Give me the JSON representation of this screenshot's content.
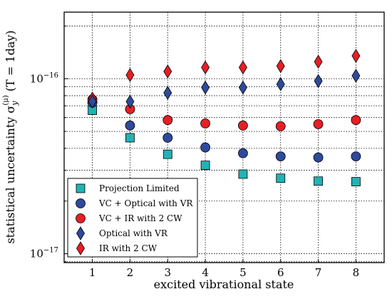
{
  "chart_data": {
    "type": "scatter",
    "title": "",
    "xlabel": "excited vibrational state",
    "ylabel": "statistical uncertainty σ_y^(μ) (T = 1day)",
    "ylabel_parts": {
      "main": "statistical uncertainty σ",
      "sub": "y",
      "sup": "(μ)",
      "tail": " (T = 1day)"
    },
    "x_ticks": [
      "1",
      "2",
      "3",
      "4",
      "5",
      "6",
      "7",
      "8"
    ],
    "y_tick_labels": [
      {
        "value": 1e-17,
        "base": "10",
        "exp": "−17"
      },
      {
        "value": 1e-16,
        "base": "10",
        "exp": "−16"
      }
    ],
    "xlim": [
      0.25,
      8.75
    ],
    "ylim": [
      8.9e-18,
      2.4e-16
    ],
    "yscale": "log",
    "grid": true,
    "legend_position": "lower-left",
    "categories": [
      1,
      2,
      3,
      4,
      5,
      6,
      7,
      8
    ],
    "series": [
      {
        "name": "Projection Limited",
        "marker": "square",
        "color": "#23b2b5",
        "values": [
          6.6e-17,
          4.6e-17,
          3.7e-17,
          3.2e-17,
          2.85e-17,
          2.7e-17,
          2.6e-17,
          2.58e-17
        ]
      },
      {
        "name": "VC + Optical with VR",
        "marker": "circle",
        "color": "#2d4a9c",
        "values": [
          7.3e-17,
          5.4e-17,
          4.6e-17,
          4.05e-17,
          3.75e-17,
          3.6e-17,
          3.55e-17,
          3.6e-17
        ]
      },
      {
        "name": "VC + IR with 2 CW",
        "marker": "circle",
        "color": "#e51f24",
        "values": [
          7.6e-17,
          6.7e-17,
          5.8e-17,
          5.55e-17,
          5.4e-17,
          5.35e-17,
          5.5e-17,
          5.8e-17
        ]
      },
      {
        "name": "Optical with VR",
        "marker": "diamond",
        "color": "#2d4a9c",
        "values": [
          7.4e-17,
          7.4e-17,
          8.3e-17,
          8.9e-17,
          8.9e-17,
          9.3e-17,
          9.7e-17,
          1.04e-16
        ]
      },
      {
        "name": "IR with 2 CW",
        "marker": "diamond",
        "color": "#e51f24",
        "values": [
          7.7e-17,
          1.05e-16,
          1.1e-16,
          1.16e-16,
          1.16e-16,
          1.18e-16,
          1.25e-16,
          1.35e-16
        ]
      }
    ]
  }
}
